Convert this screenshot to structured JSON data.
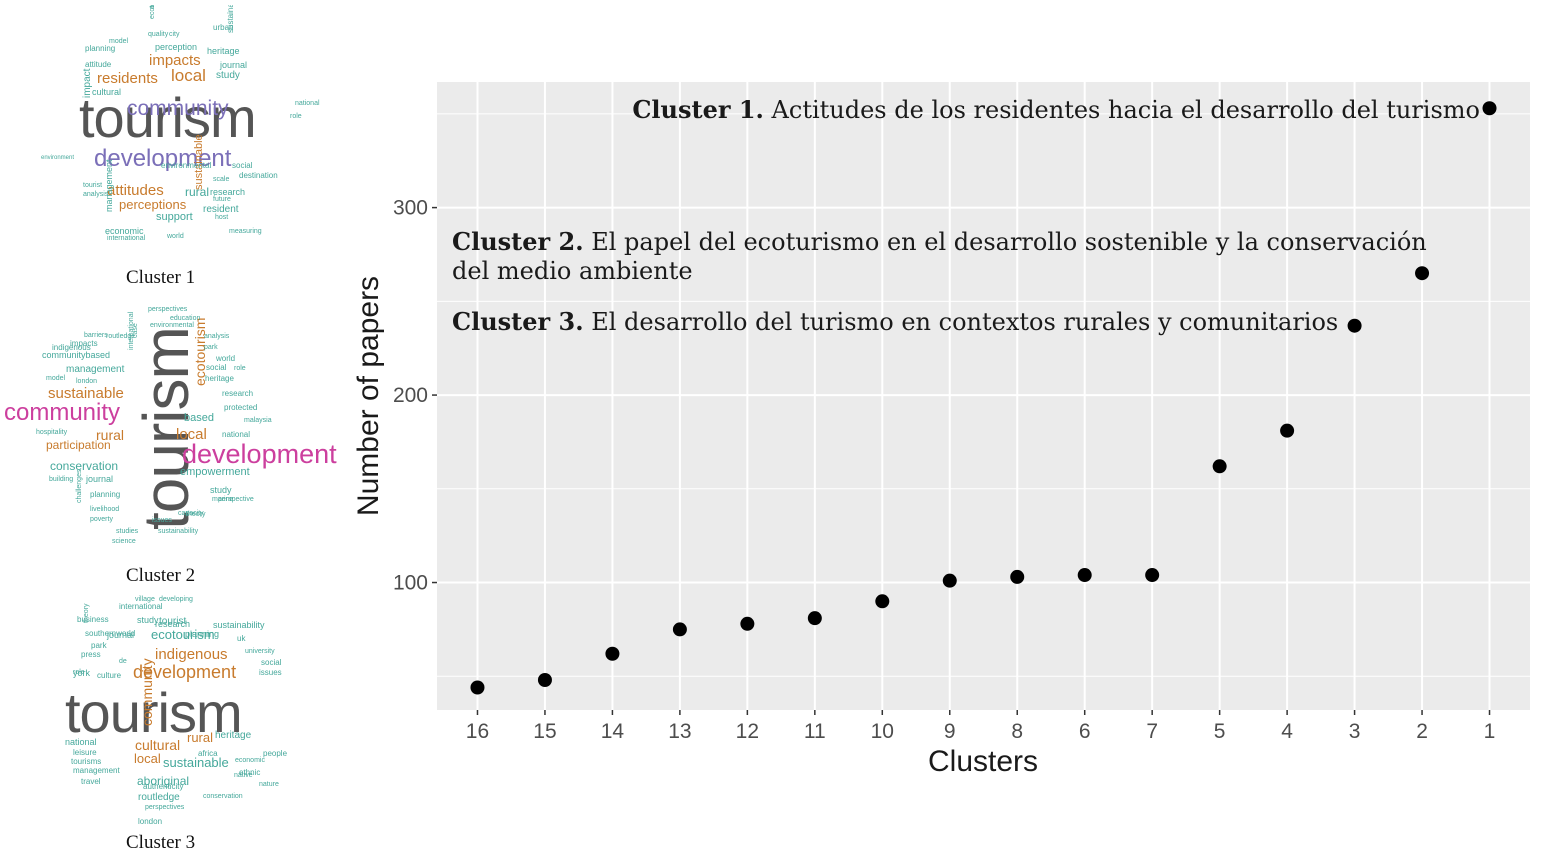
{
  "word_clouds": [
    {
      "caption": "Cluster 1",
      "words": [
        {
          "text": "tourism",
          "size": 56,
          "color": "#555555"
        },
        {
          "text": "development",
          "size": 24,
          "color": "#7b6fb8"
        },
        {
          "text": "community",
          "size": 21,
          "color": "#7b6fb8"
        },
        {
          "text": "residents",
          "size": 15,
          "color": "#c87b2d"
        },
        {
          "text": "local",
          "size": 17,
          "color": "#c87b2d"
        },
        {
          "text": "impacts",
          "size": 15,
          "color": "#c87b2d"
        },
        {
          "text": "attitudes",
          "size": 15,
          "color": "#c87b2d"
        },
        {
          "text": "perceptions",
          "size": 13,
          "color": "#c87b2d"
        },
        {
          "text": "support",
          "size": 11,
          "color": "#45a89b"
        },
        {
          "text": "sustainable",
          "size": 11,
          "color": "#c87b2d"
        },
        {
          "text": "rural",
          "size": 12,
          "color": "#45a89b"
        },
        {
          "text": "resident",
          "size": 10,
          "color": "#45a89b"
        },
        {
          "text": "study",
          "size": 10,
          "color": "#45a89b"
        },
        {
          "text": "heritage",
          "size": 9,
          "color": "#45a89b"
        },
        {
          "text": "perception",
          "size": 9,
          "color": "#45a89b"
        },
        {
          "text": "journal",
          "size": 9,
          "color": "#45a89b"
        },
        {
          "text": "management",
          "size": 9,
          "color": "#45a89b"
        },
        {
          "text": "economic",
          "size": 9,
          "color": "#45a89b"
        },
        {
          "text": "environmental",
          "size": 8,
          "color": "#45a89b"
        },
        {
          "text": "destination",
          "size": 8,
          "color": "#45a89b"
        },
        {
          "text": "research",
          "size": 9,
          "color": "#45a89b"
        },
        {
          "text": "social",
          "size": 8,
          "color": "#45a89b"
        },
        {
          "text": "impact",
          "size": 10,
          "color": "#45a89b"
        },
        {
          "text": "cultural",
          "size": 9,
          "color": "#45a89b"
        },
        {
          "text": "sustainability",
          "size": 8,
          "color": "#45a89b"
        },
        {
          "text": "planning",
          "size": 8,
          "color": "#45a89b"
        },
        {
          "text": "attitude",
          "size": 8,
          "color": "#45a89b"
        },
        {
          "text": "agricultural",
          "size": 7,
          "color": "#45a89b"
        },
        {
          "text": "ecotourism",
          "size": 7,
          "color": "#45a89b"
        },
        {
          "text": "urban",
          "size": 8,
          "color": "#45a89b"
        },
        {
          "text": "quality",
          "size": 7,
          "color": "#45a89b"
        },
        {
          "text": "model",
          "size": 7,
          "color": "#45a89b"
        },
        {
          "text": "national",
          "size": 7,
          "color": "#45a89b"
        },
        {
          "text": "scale",
          "size": 7,
          "color": "#45a89b"
        },
        {
          "text": "future",
          "size": 7,
          "color": "#45a89b"
        },
        {
          "text": "host",
          "size": 7,
          "color": "#45a89b"
        },
        {
          "text": "international",
          "size": 7,
          "color": "#45a89b"
        },
        {
          "text": "world",
          "size": 7,
          "color": "#45a89b"
        },
        {
          "text": "measuring",
          "size": 7,
          "color": "#45a89b"
        },
        {
          "text": "analysis",
          "size": 7,
          "color": "#45a89b"
        },
        {
          "text": "tourist",
          "size": 7,
          "color": "#45a89b"
        },
        {
          "text": "environment",
          "size": 6,
          "color": "#45a89b"
        },
        {
          "text": "role",
          "size": 7,
          "color": "#45a89b"
        },
        {
          "text": "city",
          "size": 7,
          "color": "#45a89b"
        }
      ]
    },
    {
      "caption": "Cluster 2",
      "words": [
        {
          "text": "tourism",
          "size": 64,
          "color": "#555555"
        },
        {
          "text": "development",
          "size": 27,
          "color": "#cc3f9e"
        },
        {
          "text": "community",
          "size": 24,
          "color": "#cc3f9e"
        },
        {
          "text": "sustainable",
          "size": 15,
          "color": "#c87b2d"
        },
        {
          "text": "ecotourism",
          "size": 14,
          "color": "#c87b2d"
        },
        {
          "text": "local",
          "size": 15,
          "color": "#c87b2d"
        },
        {
          "text": "rural",
          "size": 14,
          "color": "#c87b2d"
        },
        {
          "text": "participation",
          "size": 12,
          "color": "#c87b2d"
        },
        {
          "text": "conservation",
          "size": 12,
          "color": "#45a89b"
        },
        {
          "text": "empowerment",
          "size": 11,
          "color": "#45a89b"
        },
        {
          "text": "management",
          "size": 10,
          "color": "#45a89b"
        },
        {
          "text": "based",
          "size": 11,
          "color": "#45a89b"
        },
        {
          "text": "communitybased",
          "size": 9,
          "color": "#45a89b"
        },
        {
          "text": "indigenous",
          "size": 8,
          "color": "#45a89b"
        },
        {
          "text": "impacts",
          "size": 8,
          "color": "#45a89b"
        },
        {
          "text": "barriers",
          "size": 7,
          "color": "#45a89b"
        },
        {
          "text": "routledge",
          "size": 7,
          "color": "#45a89b"
        },
        {
          "text": "perspectives",
          "size": 7,
          "color": "#45a89b"
        },
        {
          "text": "education",
          "size": 7,
          "color": "#45a89b"
        },
        {
          "text": "environmental",
          "size": 7,
          "color": "#45a89b"
        },
        {
          "text": "analysis",
          "size": 7,
          "color": "#45a89b"
        },
        {
          "text": "park",
          "size": 7,
          "color": "#45a89b"
        },
        {
          "text": "world",
          "size": 8,
          "color": "#45a89b"
        },
        {
          "text": "social",
          "size": 8,
          "color": "#45a89b"
        },
        {
          "text": "role",
          "size": 7,
          "color": "#45a89b"
        },
        {
          "text": "heritage",
          "size": 8,
          "color": "#45a89b"
        },
        {
          "text": "research",
          "size": 8,
          "color": "#45a89b"
        },
        {
          "text": "protected",
          "size": 8,
          "color": "#45a89b"
        },
        {
          "text": "malaysia",
          "size": 7,
          "color": "#45a89b"
        },
        {
          "text": "national",
          "size": 8,
          "color": "#45a89b"
        },
        {
          "text": "hospitality",
          "size": 7,
          "color": "#45a89b"
        },
        {
          "text": "journal",
          "size": 9,
          "color": "#45a89b"
        },
        {
          "text": "planning",
          "size": 8,
          "color": "#45a89b"
        },
        {
          "text": "livelihood",
          "size": 7,
          "color": "#45a89b"
        },
        {
          "text": "poverty",
          "size": 7,
          "color": "#45a89b"
        },
        {
          "text": "studies",
          "size": 7,
          "color": "#45a89b"
        },
        {
          "text": "science",
          "size": 7,
          "color": "#45a89b"
        },
        {
          "text": "sustainability",
          "size": 7,
          "color": "#45a89b"
        },
        {
          "text": "issues",
          "size": 7,
          "color": "#45a89b"
        },
        {
          "text": "capacity",
          "size": 7,
          "color": "#45a89b"
        },
        {
          "text": "theory",
          "size": 7,
          "color": "#45a89b"
        },
        {
          "text": "study",
          "size": 9,
          "color": "#45a89b"
        },
        {
          "text": "marine",
          "size": 7,
          "color": "#45a89b"
        },
        {
          "text": "perspective",
          "size": 7,
          "color": "#45a89b"
        },
        {
          "text": "building",
          "size": 7,
          "color": "#45a89b"
        },
        {
          "text": "model",
          "size": 7,
          "color": "#45a89b"
        },
        {
          "text": "london",
          "size": 7,
          "color": "#45a89b"
        },
        {
          "text": "challenges",
          "size": 7,
          "color": "#45a89b"
        },
        {
          "text": "international",
          "size": 7,
          "color": "#45a89b"
        },
        {
          "text": "case",
          "size": 7,
          "color": "#45a89b"
        }
      ]
    },
    {
      "caption": "Cluster 3",
      "words": [
        {
          "text": "tourism",
          "size": 56,
          "color": "#555555"
        },
        {
          "text": "development",
          "size": 18,
          "color": "#c87b2d"
        },
        {
          "text": "indigenous",
          "size": 15,
          "color": "#c87b2d"
        },
        {
          "text": "ecotourism",
          "size": 13,
          "color": "#45a89b"
        },
        {
          "text": "community",
          "size": 14,
          "color": "#c87b2d"
        },
        {
          "text": "cultural",
          "size": 14,
          "color": "#c87b2d"
        },
        {
          "text": "rural",
          "size": 13,
          "color": "#c87b2d"
        },
        {
          "text": "local",
          "size": 13,
          "color": "#c87b2d"
        },
        {
          "text": "sustainable",
          "size": 13,
          "color": "#45a89b"
        },
        {
          "text": "aboriginal",
          "size": 12,
          "color": "#45a89b"
        },
        {
          "text": "routledge",
          "size": 10,
          "color": "#45a89b"
        },
        {
          "text": "heritage",
          "size": 10,
          "color": "#45a89b"
        },
        {
          "text": "tourist",
          "size": 10,
          "color": "#45a89b"
        },
        {
          "text": "sustainability",
          "size": 9,
          "color": "#45a89b"
        },
        {
          "text": "journal",
          "size": 9,
          "color": "#45a89b"
        },
        {
          "text": "research",
          "size": 9,
          "color": "#45a89b"
        },
        {
          "text": "national",
          "size": 9,
          "color": "#45a89b"
        },
        {
          "text": "leisure",
          "size": 8,
          "color": "#45a89b"
        },
        {
          "text": "tourisms",
          "size": 8,
          "color": "#45a89b"
        },
        {
          "text": "management",
          "size": 8,
          "color": "#45a89b"
        },
        {
          "text": "travel",
          "size": 8,
          "color": "#45a89b"
        },
        {
          "text": "authenticity",
          "size": 8,
          "color": "#45a89b"
        },
        {
          "text": "conservation",
          "size": 7,
          "color": "#45a89b"
        },
        {
          "text": "perspectives",
          "size": 7,
          "color": "#45a89b"
        },
        {
          "text": "london",
          "size": 8,
          "color": "#45a89b"
        },
        {
          "text": "native",
          "size": 7,
          "color": "#45a89b"
        },
        {
          "text": "ethnic",
          "size": 8,
          "color": "#45a89b"
        },
        {
          "text": "africa",
          "size": 8,
          "color": "#45a89b"
        },
        {
          "text": "people",
          "size": 8,
          "color": "#45a89b"
        },
        {
          "text": "economic",
          "size": 7,
          "color": "#45a89b"
        },
        {
          "text": "nature",
          "size": 7,
          "color": "#45a89b"
        },
        {
          "text": "business",
          "size": 8,
          "color": "#45a89b"
        },
        {
          "text": "study",
          "size": 9,
          "color": "#45a89b"
        },
        {
          "text": "international",
          "size": 8,
          "color": "#45a89b"
        },
        {
          "text": "planning",
          "size": 9,
          "color": "#45a89b"
        },
        {
          "text": "village",
          "size": 7,
          "color": "#45a89b"
        },
        {
          "text": "developing",
          "size": 7,
          "color": "#45a89b"
        },
        {
          "text": "southernworld",
          "size": 8,
          "color": "#45a89b"
        },
        {
          "text": "park",
          "size": 8,
          "color": "#45a89b"
        },
        {
          "text": "press",
          "size": 8,
          "color": "#45a89b"
        },
        {
          "text": "york",
          "size": 9,
          "color": "#45a89b"
        },
        {
          "text": "culture",
          "size": 8,
          "color": "#45a89b"
        },
        {
          "text": "issues",
          "size": 8,
          "color": "#45a89b"
        },
        {
          "text": "social",
          "size": 8,
          "color": "#45a89b"
        },
        {
          "text": "university",
          "size": 7,
          "color": "#45a89b"
        },
        {
          "text": "uk",
          "size": 8,
          "color": "#45a89b"
        },
        {
          "text": "de",
          "size": 7,
          "color": "#45a89b"
        },
        {
          "text": "theory",
          "size": 7,
          "color": "#45a89b"
        },
        {
          "text": "role",
          "size": 7,
          "color": "#45a89b"
        }
      ]
    }
  ],
  "chart_data": {
    "type": "scatter",
    "title": "",
    "xlabel": "Clusters",
    "ylabel": "Number of papers",
    "categories": [
      "16",
      "15",
      "14",
      "13",
      "12",
      "11",
      "10",
      "9",
      "8",
      "6",
      "7",
      "5",
      "4",
      "3",
      "2",
      "1"
    ],
    "values": [
      44,
      48,
      62,
      75,
      78,
      81,
      90,
      101,
      103,
      104,
      104,
      162,
      181,
      237,
      265,
      353
    ],
    "y_ticks": [
      100,
      200,
      300
    ],
    "ylim": [
      32,
      367
    ],
    "grid": true,
    "panel_color": "#ebebeb",
    "point_color": "#000000",
    "annotations": [
      {
        "bold": "Cluster 1.",
        "text": "Actitudes de los residentes hacia el desarrollo del turismo"
      },
      {
        "bold": "Cluster 2.",
        "text": "El papel del ecoturismo en el desarrollo sostenible y la conservación",
        "text2": "del medio ambiente"
      },
      {
        "bold": "Cluster 3.",
        "text": "El desarrollo del turismo en contextos rurales y comunitarios"
      }
    ]
  }
}
